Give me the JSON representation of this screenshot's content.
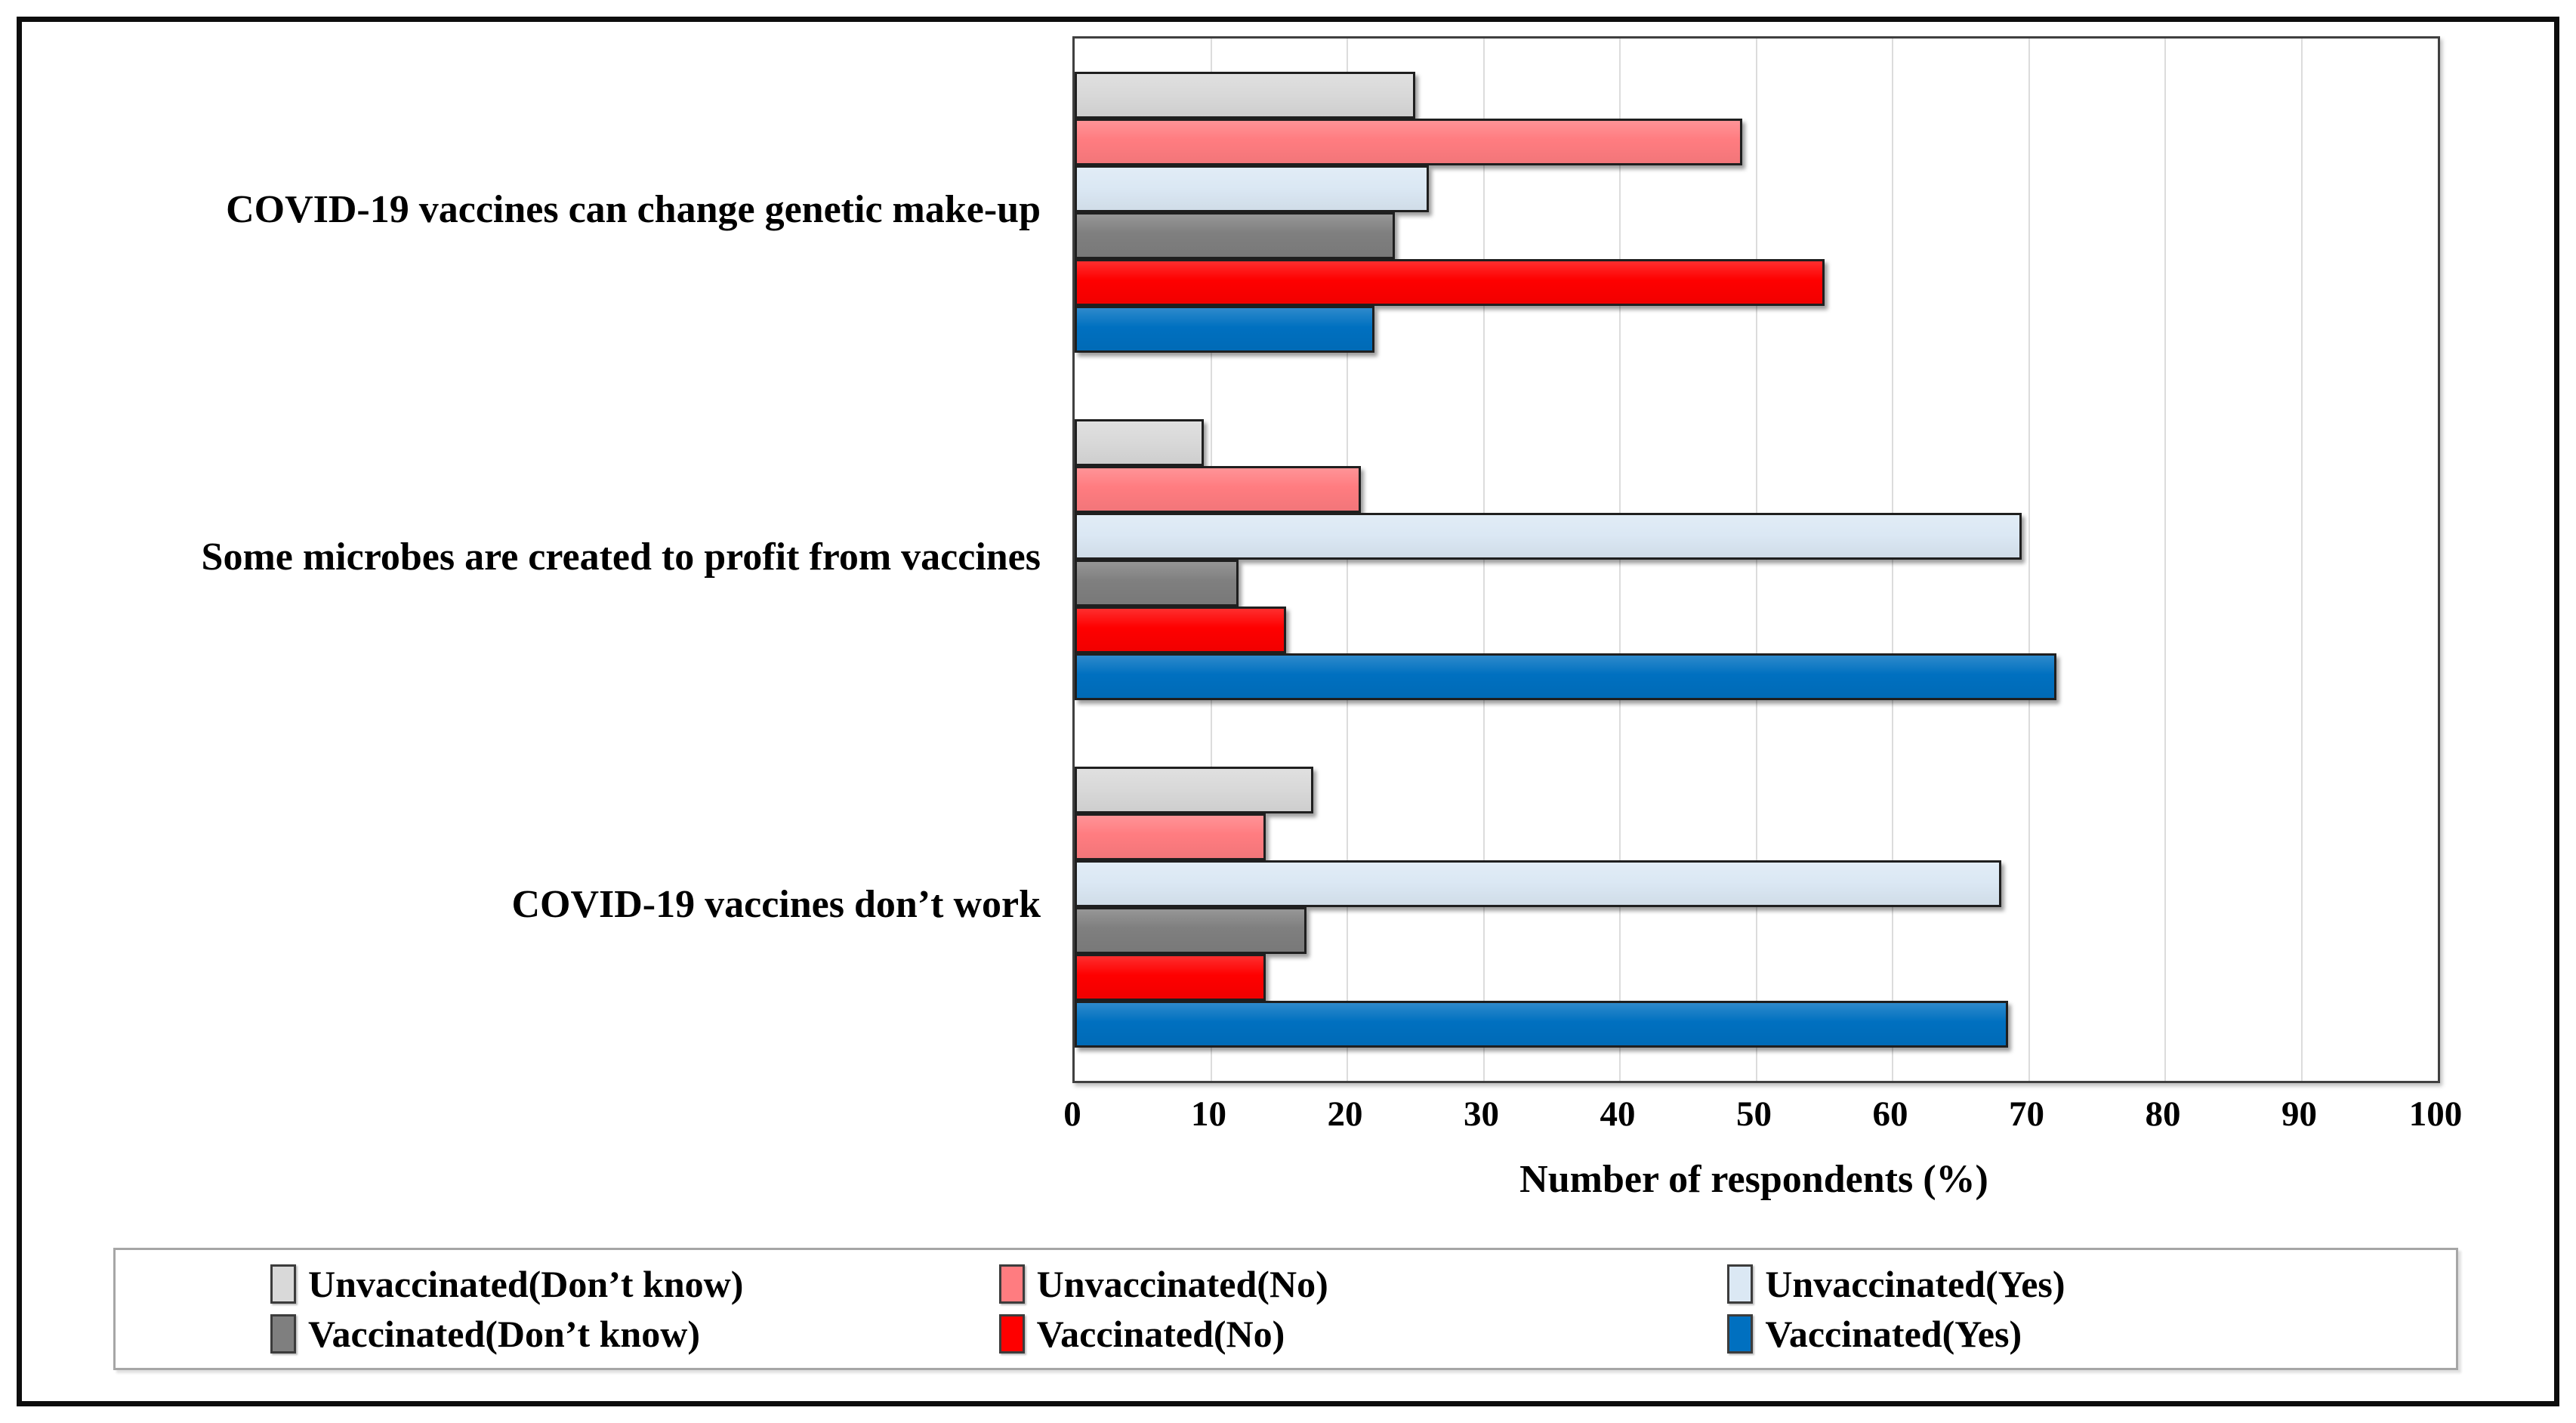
{
  "chart_data": {
    "type": "bar",
    "orientation": "horizontal",
    "title": "",
    "xlabel": "Number of respondents (%)",
    "ylabel": "",
    "xlim": [
      0,
      100
    ],
    "x_ticks": [
      0,
      10,
      20,
      30,
      40,
      50,
      60,
      70,
      80,
      90,
      100
    ],
    "grid": true,
    "legend_position": "bottom",
    "categories": [
      "COVID-19 vaccines can change genetic make-up",
      "Some microbes are created to profit from vaccines",
      "COVID-19 vaccines don’t work"
    ],
    "series": [
      {
        "key": "unvaccinated-dont-know",
        "name": "Unvaccinated(Don’t know)",
        "color": "#d9d9d9",
        "values": [
          25,
          9.5,
          17.5
        ]
      },
      {
        "key": "unvaccinated-no",
        "name": "Unvaccinated(No)",
        "color": "#ff7c80",
        "values": [
          49,
          21,
          14
        ]
      },
      {
        "key": "unvaccinated-yes",
        "name": "Unvaccinated(Yes)",
        "color": "#dbe8f4",
        "values": [
          26,
          69.5,
          68
        ]
      },
      {
        "key": "vaccinated-dont-know",
        "name": "Vaccinated(Don’t know)",
        "color": "#7f7f7f",
        "values": [
          23.5,
          12,
          17
        ]
      },
      {
        "key": "vaccinated-no",
        "name": "Vaccinated(No)",
        "color": "#fe0000",
        "values": [
          55,
          15.5,
          14
        ]
      },
      {
        "key": "vaccinated-yes",
        "name": "Vaccinated(Yes)",
        "color": "#0070c0",
        "values": [
          22,
          72,
          68.5
        ]
      }
    ]
  }
}
